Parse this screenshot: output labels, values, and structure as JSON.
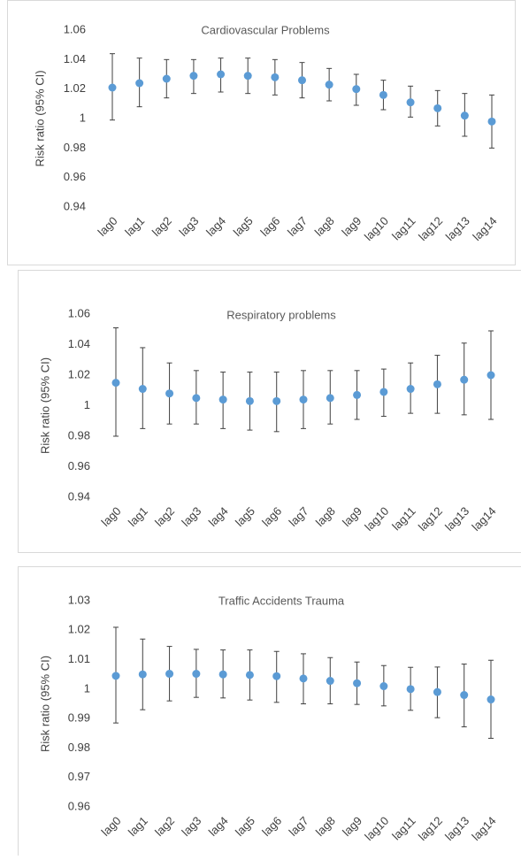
{
  "chart_data": [
    {
      "type": "errorbar",
      "title": "Cardiovascular Problems",
      "y_label": "Risk ratio (95% CI)",
      "categories": [
        "lag0",
        "lag1",
        "lag2",
        "lag3",
        "lag4",
        "lag5",
        "lag6",
        "lag7",
        "lag8",
        "lag9",
        "lag10",
        "lag11",
        "lag12",
        "lag13",
        "lag14"
      ],
      "values": [
        1.021,
        1.024,
        1.027,
        1.029,
        1.03,
        1.029,
        1.028,
        1.026,
        1.023,
        1.02,
        1.016,
        1.011,
        1.007,
        1.002,
        0.998
      ],
      "lower": [
        0.999,
        1.008,
        1.014,
        1.017,
        1.018,
        1.017,
        1.016,
        1.014,
        1.012,
        1.009,
        1.006,
        1.001,
        0.995,
        0.988,
        0.98
      ],
      "upper": [
        1.044,
        1.041,
        1.04,
        1.04,
        1.041,
        1.041,
        1.04,
        1.038,
        1.034,
        1.03,
        1.026,
        1.022,
        1.019,
        1.017,
        1.016
      ],
      "color": "#5b9bd5",
      "error_color": "#404040",
      "ylim": [
        0.94,
        1.06
      ],
      "yticks": [
        0.94,
        0.96,
        0.98,
        1,
        1.02,
        1.04,
        1.06
      ]
    },
    {
      "type": "errorbar",
      "title": "Respiratory problems",
      "y_label": "Risk ratio (95% CI)",
      "categories": [
        "lag0",
        "lag1",
        "lag2",
        "lag3",
        "lag4",
        "lag5",
        "lag6",
        "lag7",
        "lag8",
        "lag9",
        "lag10",
        "lag11",
        "lag12",
        "lag13",
        "lag14"
      ],
      "values": [
        1.015,
        1.011,
        1.008,
        1.005,
        1.004,
        1.003,
        1.003,
        1.004,
        1.005,
        1.007,
        1.009,
        1.011,
        1.014,
        1.017,
        1.02
      ],
      "lower": [
        0.98,
        0.985,
        0.988,
        0.988,
        0.985,
        0.984,
        0.983,
        0.985,
        0.988,
        0.991,
        0.993,
        0.995,
        0.995,
        0.994,
        0.991
      ],
      "upper": [
        1.051,
        1.038,
        1.028,
        1.023,
        1.022,
        1.022,
        1.022,
        1.023,
        1.023,
        1.023,
        1.024,
        1.028,
        1.033,
        1.041,
        1.049
      ],
      "color": "#5b9bd5",
      "error_color": "#404040",
      "ylim": [
        0.94,
        1.06
      ],
      "yticks": [
        0.94,
        0.96,
        0.98,
        1,
        1.02,
        1.04,
        1.06
      ]
    },
    {
      "type": "errorbar",
      "title": "Traffic Accidents Trauma",
      "y_label": "Risk ratio (95% CI)",
      "categories": [
        "lag0",
        "lag1",
        "lag2",
        "lag3",
        "lag4",
        "lag5",
        "lag6",
        "lag7",
        "lag8",
        "lag9",
        "lag10",
        "lag11",
        "lag12",
        "lag13",
        "lag14"
      ],
      "values": [
        1.0045,
        1.005,
        1.0052,
        1.0052,
        1.005,
        1.0048,
        1.0044,
        1.0036,
        1.0028,
        1.002,
        1.001,
        1.0,
        0.999,
        0.998,
        0.9965
      ],
      "lower": [
        0.9885,
        0.993,
        0.996,
        0.9972,
        0.997,
        0.9963,
        0.9955,
        0.995,
        0.995,
        0.9948,
        0.9943,
        0.9928,
        0.9903,
        0.9872,
        0.9833
      ],
      "upper": [
        1.021,
        1.017,
        1.0145,
        1.0135,
        1.0133,
        1.0133,
        1.0128,
        1.012,
        1.0107,
        1.0092,
        1.008,
        1.0074,
        1.0075,
        1.0085,
        1.0098
      ],
      "color": "#5b9bd5",
      "error_color": "#404040",
      "ylim": [
        0.96,
        1.03
      ],
      "yticks": [
        0.96,
        0.97,
        0.98,
        0.99,
        1,
        1.01,
        1.02,
        1.03
      ]
    }
  ]
}
